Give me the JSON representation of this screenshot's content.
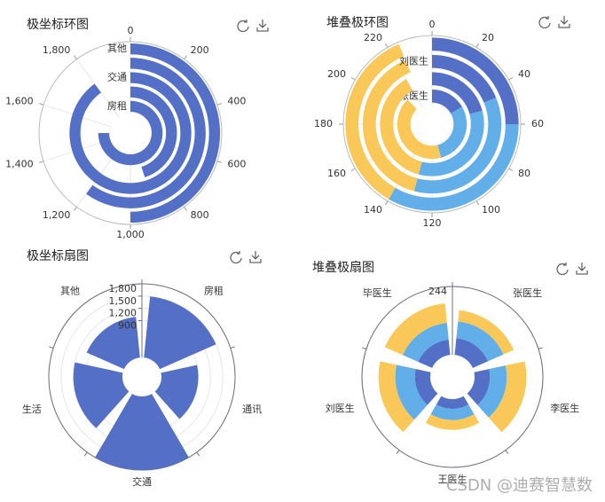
{
  "chart_data": [
    {
      "type": "polar-ring",
      "title": "极坐标环图",
      "categories": [
        "房租",
        null,
        "交通",
        null,
        "其他"
      ],
      "values": [
        1500,
        900,
        1800,
        1200,
        1000
      ],
      "color": "#5470c6",
      "xlim": [
        0,
        2000
      ],
      "xticks": [
        0,
        200,
        400,
        600,
        800,
        {
          "value": 1000,
          "label": "1,000"
        },
        {
          "value": 1200,
          "label": "1,200"
        },
        {
          "value": 1400,
          "label": "1,400"
        },
        {
          "value": 1600,
          "label": "1,600"
        },
        {
          "value": 1800,
          "label": "1,800"
        }
      ]
    },
    {
      "type": "polar-ring",
      "title": "堆叠极环图",
      "categories": [
        "张医生",
        null,
        "刘医生",
        null
      ],
      "series": [
        {
          "color": "#5470c6",
          "values": [
            40,
            50,
            45,
            60
          ]
        },
        {
          "color": "#62aee8",
          "values": [
            70,
            80,
            85,
            80
          ]
        },
        {
          "color": "#fac858",
          "values": [
            100,
            90,
            95,
            85
          ]
        }
      ],
      "xlim": [
        0,
        240
      ],
      "xticks": [
        0,
        20,
        40,
        60,
        80,
        100,
        120,
        140,
        160,
        180,
        200,
        220,
        240
      ]
    },
    {
      "type": "polar-sector",
      "title": "极坐标扇图",
      "categories": [
        "房租",
        "通讯",
        "交通",
        "生活",
        "其他"
      ],
      "values": [
        1500,
        900,
        1800,
        1200,
        1000
      ],
      "color": "#5470c6",
      "ylim": [
        0,
        1800
      ],
      "yticks": [
        {
          "value": 900,
          "label": "900"
        },
        {
          "value": 1200,
          "label": "1,200"
        },
        {
          "value": 1500,
          "label": "1,500"
        },
        {
          "value": 1800,
          "label": "1,800"
        }
      ]
    },
    {
      "type": "polar-sector",
      "title": "堆叠极扇图",
      "categories": [
        "张医生",
        "李医生",
        "王医生",
        "刘医生",
        "毕医生"
      ],
      "series": [
        {
          "color": "#5470c6",
          "values": [
            60,
            55,
            35,
            55,
            55
          ]
        },
        {
          "color": "#62aee8",
          "values": [
            60,
            60,
            40,
            70,
            60
          ]
        },
        {
          "color": "#fac858",
          "values": [
            40,
            70,
            35,
            60,
            70
          ]
        }
      ],
      "ylim": [
        0,
        244
      ],
      "yticks": [
        244
      ]
    }
  ],
  "watermark": "CSDN @迪赛智慧数"
}
